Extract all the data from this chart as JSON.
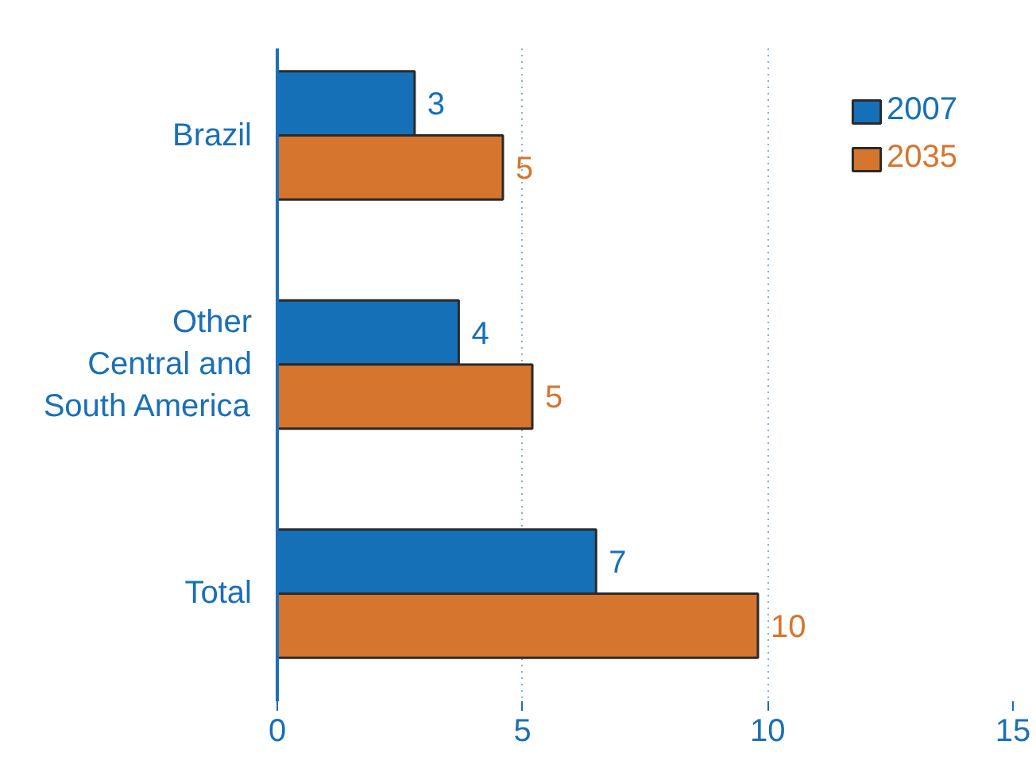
{
  "chart_data": {
    "type": "bar",
    "orientation": "horizontal",
    "categories": [
      "Brazil",
      "Other\nCentral and\nSouth America",
      "Total"
    ],
    "series": [
      {
        "name": "2007",
        "color": "#1570b8",
        "values": [
          2.8,
          3.7,
          6.5
        ],
        "value_labels": [
          "3",
          "4",
          "7"
        ]
      },
      {
        "name": "2035",
        "color": "#d6752e",
        "values": [
          4.6,
          5.2,
          9.8
        ],
        "value_labels": [
          "5",
          "5",
          "10"
        ]
      }
    ],
    "xlim": [
      0,
      15
    ],
    "xticks": [
      0,
      5,
      10,
      15
    ],
    "grid": "x",
    "legend": "top right"
  }
}
